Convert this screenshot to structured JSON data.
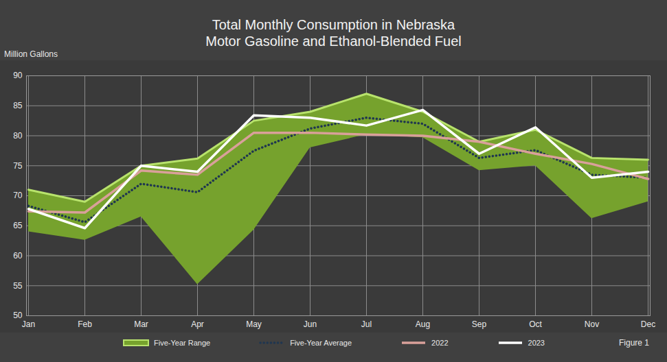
{
  "chart_data": {
    "type": "line",
    "title": "Total Monthly Consumption in Nebraska",
    "subtitle": "Motor Gasoline and Ethanol-Blended Fuel",
    "ylabel": "Million Gallons",
    "annotation": "Figure 1",
    "categories": [
      "Jan",
      "Feb",
      "Mar",
      "Apr",
      "May",
      "Jun",
      "Jul",
      "Aug",
      "Sep",
      "Oct",
      "Nov",
      "Dec"
    ],
    "ylim": [
      50,
      90
    ],
    "yticks": [
      50,
      55,
      60,
      65,
      70,
      75,
      80,
      85,
      90
    ],
    "grid": true,
    "legend": "bottom",
    "series": [
      {
        "name": "Five-Year Range",
        "type": "area",
        "color": "#76a22d",
        "values": [
          [
            64,
            71
          ],
          [
            62.6,
            69
          ],
          [
            66.5,
            75
          ],
          [
            55.2,
            76.2
          ],
          [
            64.3,
            82.5
          ],
          [
            78,
            84
          ],
          [
            80.2,
            87
          ],
          [
            79.7,
            84
          ],
          [
            74.2,
            79
          ],
          [
            75,
            81
          ],
          [
            66.2,
            76.3
          ],
          [
            69,
            76
          ]
        ]
      },
      {
        "name": "Five-Year Average",
        "type": "line",
        "color": "#1f3650",
        "line_style": "dotted",
        "values": [
          68.3,
          65.6,
          72,
          70.6,
          77.5,
          81.2,
          83,
          82,
          76.3,
          77.6,
          73.5,
          73
        ]
      },
      {
        "name": "2022",
        "type": "line",
        "color": "#d9a09a",
        "line_style": "solid",
        "values": [
          67.4,
          67.2,
          74.2,
          73.5,
          80.5,
          80.5,
          80.2,
          80,
          79,
          77,
          75.3,
          72.8
        ]
      },
      {
        "name": "2023",
        "type": "line",
        "color": "#ffffff",
        "line_style": "solid",
        "values": [
          67.8,
          64.6,
          75,
          74,
          83.4,
          83,
          81.7,
          84.3,
          77,
          81.4,
          73,
          74
        ]
      }
    ]
  }
}
